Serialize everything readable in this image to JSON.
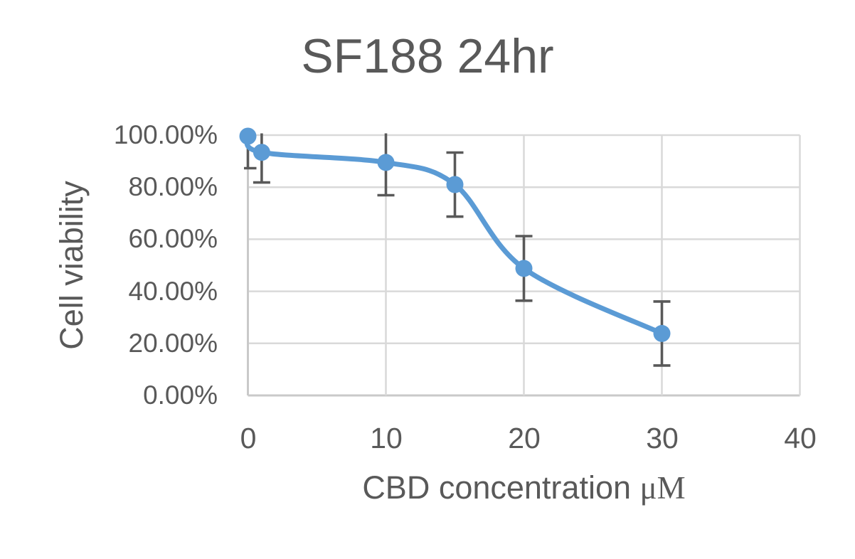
{
  "title": "SF188 24hr",
  "chart_data": {
    "type": "line",
    "title": "SF188 24hr",
    "xlabel": "CBD concentration",
    "xlabel_unit": "μM",
    "ylabel": "Cell viability",
    "xlim": [
      0,
      40
    ],
    "ylim_percent": [
      0,
      100
    ],
    "xticks": [
      0,
      10,
      20,
      30,
      40
    ],
    "ytick_step_percent": 20,
    "ytick_labels": [
      "0.00%",
      "20.00%",
      "40.00%",
      "60.00%",
      "80.00%",
      "100.00%"
    ],
    "grid": true,
    "legend": "none",
    "series": [
      {
        "name": "SF188 24hr",
        "x": [
          0,
          1,
          10,
          15,
          20,
          30
        ],
        "y_percent": [
          99.6,
          93.4,
          89.5,
          81.0,
          48.8,
          23.8
        ],
        "error_percent": [
          12.3,
          11.6,
          12.6,
          12.3,
          12.4,
          12.3
        ],
        "smooth": true,
        "marker": "circle",
        "line_color": "#5B9BD5",
        "marker_color": "#5B9BD5",
        "error_bar_color": "#595959"
      }
    ],
    "colors": {
      "gridline": "#D9D9D9",
      "axis_line": "#C9C9C9",
      "text": "#595959",
      "background": "#FFFFFF"
    }
  }
}
